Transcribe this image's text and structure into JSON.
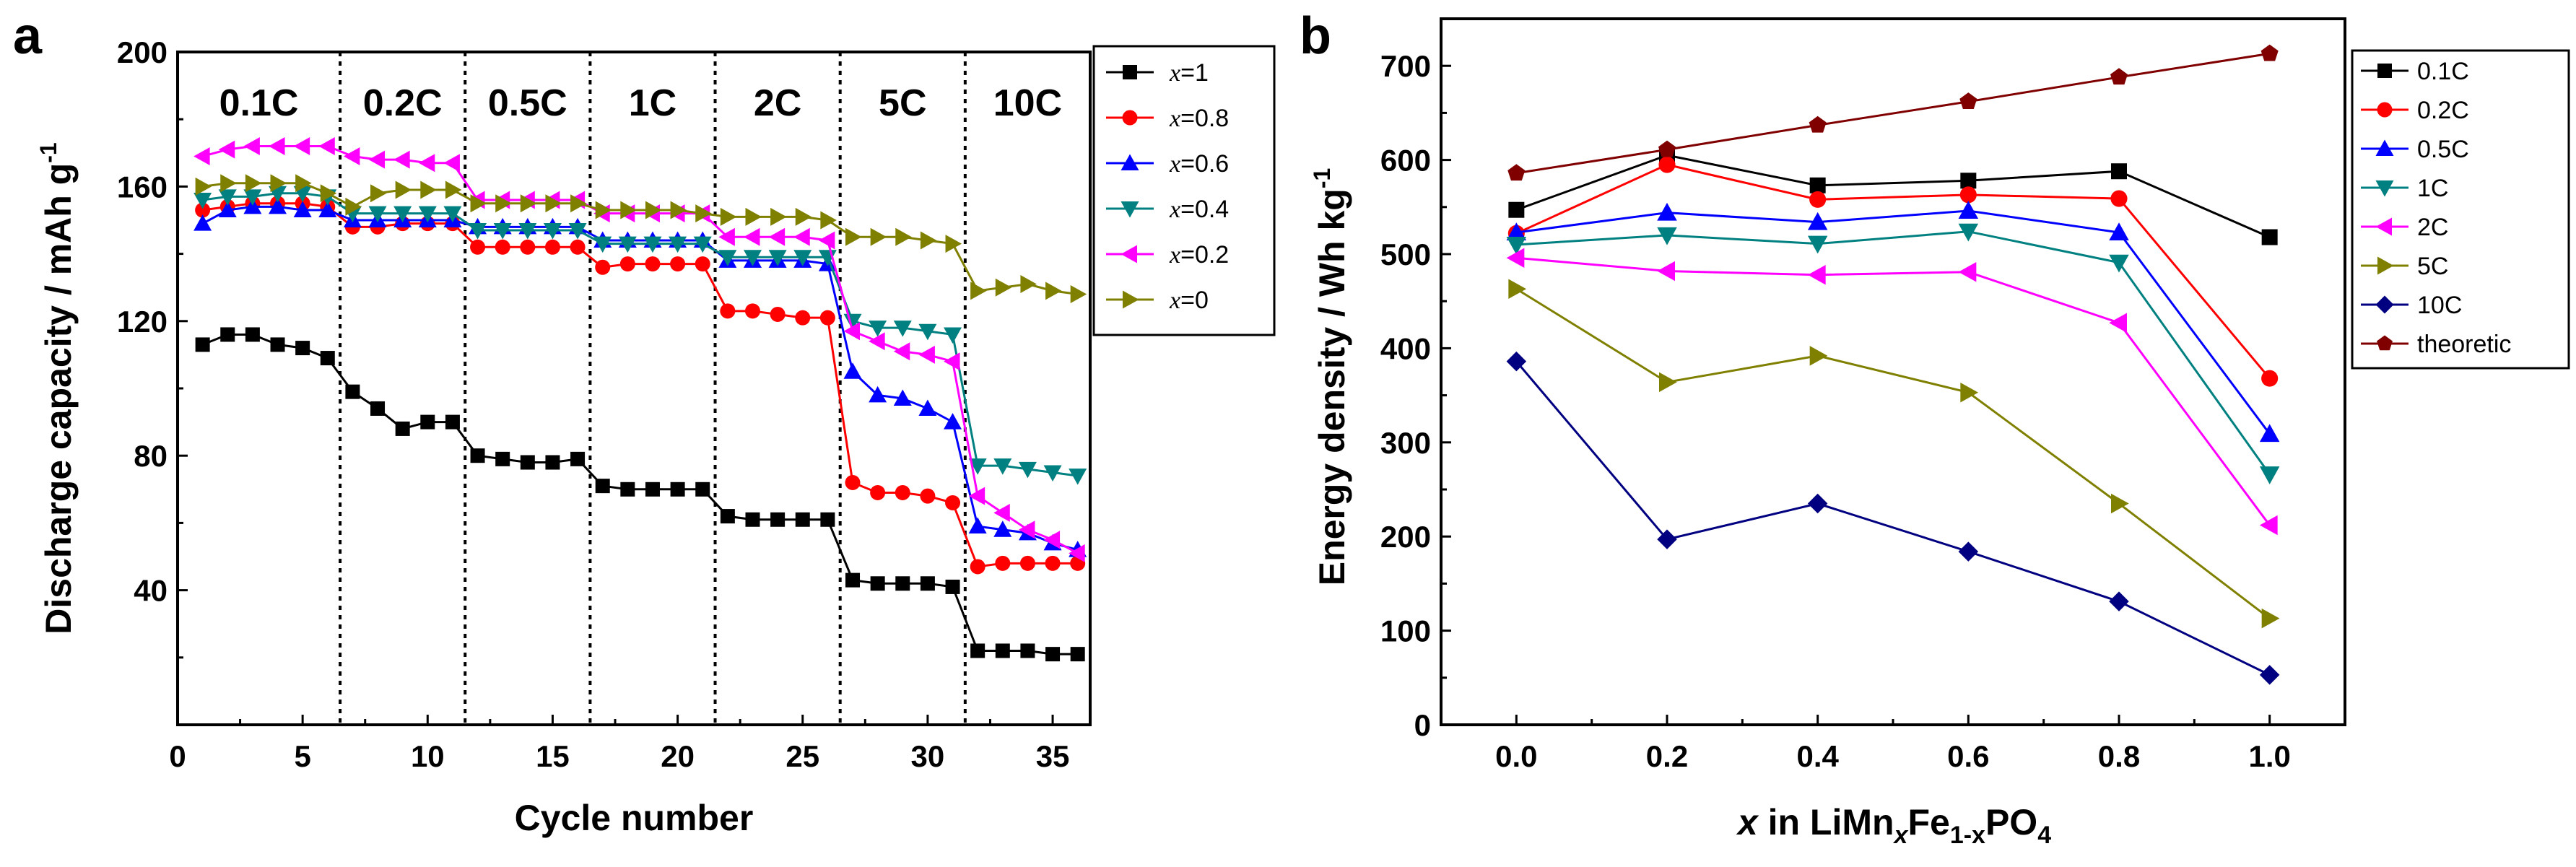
{
  "chart_data": [
    {
      "panel": "a",
      "type": "scatter",
      "xlabel": "Cycle number",
      "ylabel": "Discharge capacity / mAh g",
      "ylabel_sup": "-1",
      "xlim": [
        0,
        36.5
      ],
      "ylim": [
        0,
        200
      ],
      "xticks": [
        0,
        5,
        10,
        15,
        20,
        25,
        30,
        35
      ],
      "yticks": [
        40,
        80,
        120,
        160,
        200
      ],
      "rate_regions": [
        {
          "label": "0.1C",
          "start": 0,
          "end": 6.5
        },
        {
          "label": "0.2C",
          "start": 6.5,
          "end": 11.5
        },
        {
          "label": "0.5C",
          "start": 11.5,
          "end": 16.5
        },
        {
          "label": "1C",
          "start": 16.5,
          "end": 21.5
        },
        {
          "label": "2C",
          "start": 21.5,
          "end": 26.5
        },
        {
          "label": "5C",
          "start": 26.5,
          "end": 31.5
        },
        {
          "label": "10C",
          "start": 31.5,
          "end": 36.5
        }
      ],
      "x": [
        1,
        2,
        3,
        4,
        5,
        6,
        7,
        8,
        9,
        10,
        11,
        12,
        13,
        14,
        15,
        16,
        17,
        18,
        19,
        20,
        21,
        22,
        23,
        24,
        25,
        26,
        27,
        28,
        29,
        30,
        31,
        32,
        33,
        34,
        35,
        36
      ],
      "series": [
        {
          "legend_var": "x",
          "legend_val": "=1",
          "color": "#000000",
          "marker": "square",
          "values": [
            113,
            116,
            116,
            113,
            112,
            109,
            99,
            94,
            88,
            90,
            90,
            80,
            79,
            78,
            78,
            79,
            71,
            70,
            70,
            70,
            70,
            62,
            61,
            61,
            61,
            61,
            43,
            42,
            42,
            42,
            41,
            22,
            22,
            22,
            21,
            21
          ]
        },
        {
          "legend_var": "x",
          "legend_val": "=0.8",
          "color": "#ff0000",
          "marker": "circle",
          "values": [
            153,
            154,
            155,
            155,
            155,
            154,
            148,
            148,
            149,
            149,
            149,
            142,
            142,
            142,
            142,
            142,
            136,
            137,
            137,
            137,
            137,
            123,
            123,
            122,
            121,
            121,
            72,
            69,
            69,
            68,
            66,
            47,
            48,
            48,
            48,
            48
          ]
        },
        {
          "legend_var": "x",
          "legend_val": "=0.6",
          "color": "#0000ff",
          "marker": "triangle-up",
          "values": [
            149,
            153,
            154,
            154,
            153,
            153,
            150,
            150,
            150,
            150,
            150,
            148,
            148,
            148,
            148,
            148,
            144,
            144,
            144,
            144,
            144,
            138,
            138,
            138,
            138,
            137,
            105,
            98,
            97,
            94,
            90,
            59,
            58,
            57,
            54,
            52
          ]
        },
        {
          "legend_var": "x",
          "legend_val": "=0.4",
          "color": "#008080",
          "marker": "triangle-down",
          "values": [
            156,
            157,
            157,
            158,
            158,
            157,
            152,
            152,
            152,
            152,
            152,
            147,
            147,
            147,
            147,
            147,
            143,
            143,
            143,
            143,
            143,
            139,
            139,
            139,
            139,
            139,
            120,
            118,
            118,
            117,
            116,
            77,
            77,
            76,
            75,
            74
          ]
        },
        {
          "legend_var": "x",
          "legend_val": "=0.2",
          "color": "#ff00ff",
          "marker": "triangle-left",
          "values": [
            169,
            171,
            172,
            172,
            172,
            172,
            169,
            168,
            168,
            167,
            167,
            156,
            156,
            156,
            156,
            156,
            152,
            152,
            152,
            152,
            152,
            145,
            145,
            145,
            145,
            144,
            117,
            114,
            111,
            110,
            108,
            68,
            63,
            58,
            55,
            51
          ]
        },
        {
          "legend_var": "x",
          "legend_val": "=0",
          "color": "#808000",
          "marker": "triangle-right",
          "values": [
            160,
            161,
            161,
            161,
            161,
            158,
            154,
            158,
            159,
            159,
            159,
            155,
            155,
            155,
            155,
            155,
            153,
            153,
            153,
            153,
            152,
            151,
            151,
            151,
            151,
            150,
            145,
            145,
            145,
            144,
            143,
            129,
            130,
            131,
            129,
            128
          ]
        }
      ]
    },
    {
      "panel": "b",
      "type": "line",
      "xlabel_parts": [
        "x",
        " in LiMn",
        "x",
        "Fe",
        "1-x",
        "PO",
        "4"
      ],
      "ylabel": "Energy density / Wh kg",
      "ylabel_sup": "-1",
      "xlim": [
        -0.1,
        1.1
      ],
      "ylim": [
        0,
        750
      ],
      "xticks": [
        "0.0",
        "0.2",
        "0.4",
        "0.6",
        "0.8",
        "1.0"
      ],
      "yticks": [
        0,
        100,
        200,
        300,
        400,
        500,
        600,
        700
      ],
      "x": [
        0.0,
        0.2,
        0.4,
        0.6,
        0.8,
        1.0
      ],
      "series": [
        {
          "name": "0.1C",
          "color": "#000000",
          "marker": "square",
          "values": [
            547,
            605,
            573,
            578,
            588,
            518
          ]
        },
        {
          "name": "0.2C",
          "color": "#ff0000",
          "marker": "circle",
          "values": [
            522,
            595,
            558,
            563,
            559,
            368
          ]
        },
        {
          "name": "0.5C",
          "color": "#0000ff",
          "marker": "triangle-up",
          "values": [
            523,
            544,
            534,
            546,
            523,
            309
          ]
        },
        {
          "name": "1C",
          "color": "#008080",
          "marker": "triangle-down",
          "values": [
            510,
            520,
            511,
            524,
            491,
            266
          ]
        },
        {
          "name": "2C",
          "color": "#ff00ff",
          "marker": "triangle-left",
          "values": [
            496,
            482,
            478,
            481,
            427,
            212
          ]
        },
        {
          "name": "5C",
          "color": "#808000",
          "marker": "triangle-right",
          "values": [
            463,
            364,
            392,
            353,
            235,
            113
          ]
        },
        {
          "name": "10C",
          "color": "#000080",
          "marker": "diamond",
          "values": [
            386,
            197,
            235,
            184,
            131,
            53
          ]
        },
        {
          "name": "theoretic",
          "color": "#800000",
          "marker": "pentagon",
          "values": [
            586,
            611,
            637,
            662,
            688,
            713
          ]
        }
      ]
    }
  ]
}
